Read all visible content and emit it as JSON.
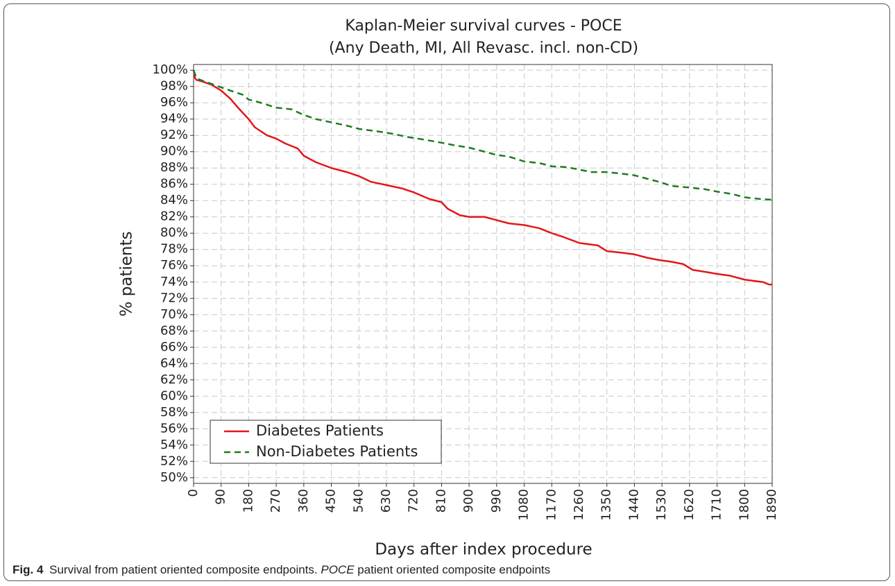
{
  "chart_data": {
    "type": "line",
    "title": [
      "Kaplan-Meier survival curves - POCE",
      "(Any Death, MI, All Revasc. incl. non-CD)"
    ],
    "x_label": "Days after index procedure",
    "y_label": "% patients",
    "legend": "lower left",
    "grid": true,
    "xlim": [
      0,
      1890
    ],
    "xticks": [
      0,
      90,
      180,
      270,
      360,
      450,
      540,
      630,
      720,
      810,
      900,
      990,
      1080,
      1170,
      1260,
      1350,
      1440,
      1530,
      1620,
      1710,
      1800,
      1890
    ],
    "ylim": [
      49.3,
      100.7
    ],
    "yticks": [
      {
        "value": 50,
        "label": "50%"
      },
      {
        "value": 52,
        "label": "52%"
      },
      {
        "value": 54,
        "label": "54%"
      },
      {
        "value": 56,
        "label": "56%"
      },
      {
        "value": 58,
        "label": "58%"
      },
      {
        "value": 60,
        "label": "60%"
      },
      {
        "value": 62,
        "label": "62%"
      },
      {
        "value": 64,
        "label": "64%"
      },
      {
        "value": 66,
        "label": "66%"
      },
      {
        "value": 68,
        "label": "68%"
      },
      {
        "value": 70,
        "label": "70%"
      },
      {
        "value": 72,
        "label": "72%"
      },
      {
        "value": 74,
        "label": "74%"
      },
      {
        "value": 76,
        "label": "76%"
      },
      {
        "value": 78,
        "label": "78%"
      },
      {
        "value": 80,
        "label": "80%"
      },
      {
        "value": 82,
        "label": "82%"
      },
      {
        "value": 84,
        "label": "84%"
      },
      {
        "value": 86,
        "label": "86%"
      },
      {
        "value": 88,
        "label": "88%"
      },
      {
        "value": 90,
        "label": "90%"
      },
      {
        "value": 92,
        "label": "92%"
      },
      {
        "value": 94,
        "label": "94%"
      },
      {
        "value": 96,
        "label": "96%"
      },
      {
        "value": 98,
        "label": "98%"
      },
      {
        "value": 100,
        "label": "100%"
      }
    ],
    "series": [
      {
        "name": "Diabetes Patients",
        "color": "#e3161b",
        "dash": "solid",
        "x": [
          0,
          5,
          10,
          30,
          60,
          90,
          120,
          150,
          180,
          200,
          240,
          270,
          300,
          340,
          360,
          400,
          450,
          500,
          540,
          580,
          630,
          680,
          720,
          770,
          810,
          830,
          870,
          900,
          950,
          990,
          1030,
          1080,
          1130,
          1170,
          1210,
          1260,
          1320,
          1350,
          1400,
          1440,
          1480,
          1520,
          1560,
          1600,
          1630,
          1680,
          1710,
          1750,
          1800,
          1860,
          1880,
          1890
        ],
        "values": [
          100,
          99,
          98.8,
          98.6,
          98.2,
          97.5,
          96.5,
          95.2,
          94,
          93,
          92,
          91.6,
          91,
          90.4,
          89.5,
          88.7,
          88,
          87.5,
          87,
          86.3,
          85.9,
          85.5,
          85,
          84.2,
          83.8,
          83,
          82.2,
          82,
          82,
          81.6,
          81.2,
          81,
          80.6,
          80,
          79.5,
          78.8,
          78.5,
          77.8,
          77.6,
          77.4,
          77,
          76.7,
          76.5,
          76.2,
          75.5,
          75.2,
          75,
          74.8,
          74.3,
          74,
          73.7,
          73.7
        ]
      },
      {
        "name": "Non-Diabetes Patients",
        "color": "#1e7a1e",
        "dash": "dashed",
        "x": [
          0,
          10,
          30,
          60,
          90,
          120,
          160,
          180,
          220,
          270,
          320,
          360,
          400,
          450,
          500,
          540,
          600,
          650,
          700,
          750,
          810,
          850,
          900,
          950,
          990,
          1030,
          1080,
          1130,
          1170,
          1220,
          1260,
          1300,
          1350,
          1400,
          1440,
          1480,
          1530,
          1560,
          1620,
          1670,
          1710,
          1760,
          1800,
          1850,
          1890
        ],
        "values": [
          100,
          99,
          98.7,
          98.3,
          97.9,
          97.5,
          97,
          96.4,
          96,
          95.4,
          95.2,
          94.5,
          94,
          93.6,
          93.2,
          92.8,
          92.5,
          92.2,
          91.8,
          91.5,
          91.1,
          90.8,
          90.5,
          90,
          89.6,
          89.4,
          88.8,
          88.6,
          88.2,
          88.1,
          87.8,
          87.5,
          87.5,
          87.3,
          87.1,
          86.7,
          86.2,
          85.8,
          85.6,
          85.4,
          85.1,
          84.8,
          84.4,
          84.2,
          84.1
        ]
      }
    ]
  },
  "caption": {
    "label": "Fig. 4",
    "text": "Survival from patient oriented composite endpoints.",
    "term": "POCE",
    "definition": "patient oriented composite endpoints"
  }
}
